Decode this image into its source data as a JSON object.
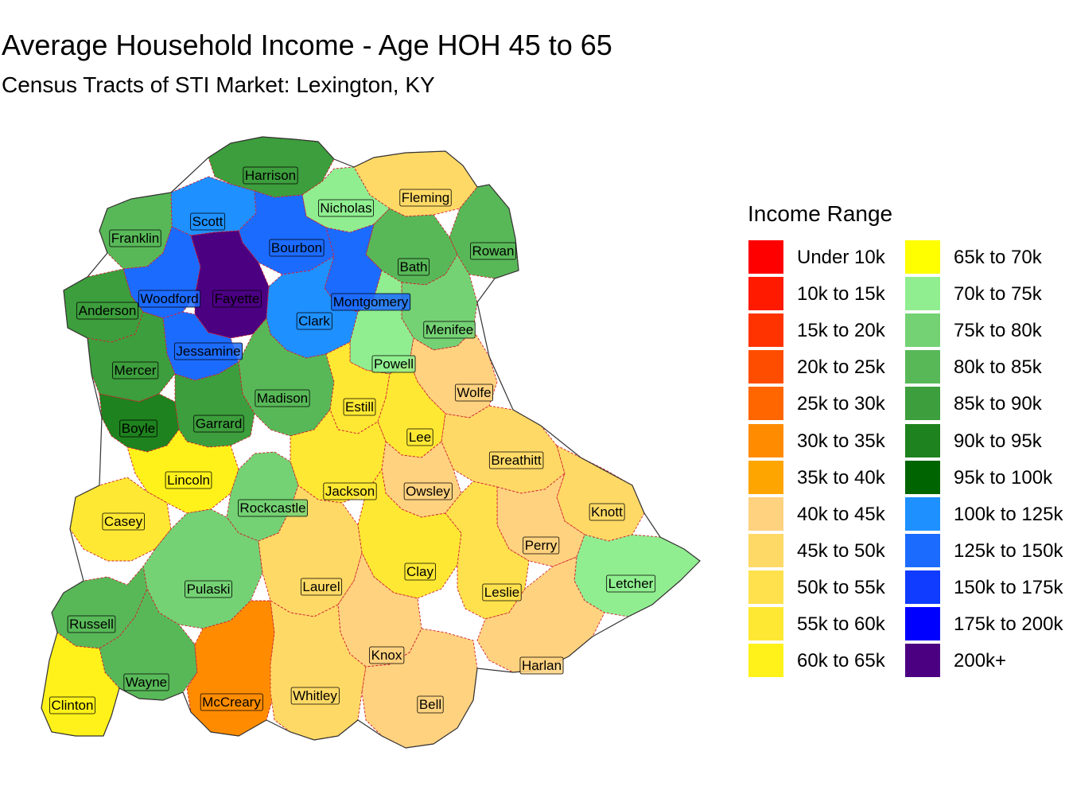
{
  "title": "Average Household Income - Age HOH 45 to 65",
  "subtitle": "Census Tracts of STI Market: Lexington, KY",
  "legend": {
    "title": "Income Range",
    "items": [
      {
        "label": "Under 10k",
        "color": "#FF0000"
      },
      {
        "label": "10k to 15k",
        "color": "#FF1A00"
      },
      {
        "label": "15k to 20k",
        "color": "#FF3300"
      },
      {
        "label": "20k to 25k",
        "color": "#FF4D00"
      },
      {
        "label": "25k to 30k",
        "color": "#FF6600"
      },
      {
        "label": "30k to 35k",
        "color": "#FF8C00"
      },
      {
        "label": "35k to 40k",
        "color": "#FFA500"
      },
      {
        "label": "40k to 45k",
        "color": "#FFD27F"
      },
      {
        "label": "45k to 50k",
        "color": "#FFD966"
      },
      {
        "label": "50k to 55k",
        "color": "#FFE14D"
      },
      {
        "label": "55k to 60k",
        "color": "#FFE833"
      },
      {
        "label": "60k to 65k",
        "color": "#FFF21A"
      },
      {
        "label": "65k to 70k",
        "color": "#FFFF00"
      },
      {
        "label": "70k to 75k",
        "color": "#90EE90"
      },
      {
        "label": "75k to 80k",
        "color": "#74D274"
      },
      {
        "label": "80k to 85k",
        "color": "#58B858"
      },
      {
        "label": "85k to 90k",
        "color": "#3C9E3C"
      },
      {
        "label": "90k to 95k",
        "color": "#1E821E"
      },
      {
        "label": "95k to 100k",
        "color": "#006400"
      },
      {
        "label": "100k to 125k",
        "color": "#1E90FF"
      },
      {
        "label": "125k to 150k",
        "color": "#1C6BFF"
      },
      {
        "label": "150k to 175k",
        "color": "#0F3CFF"
      },
      {
        "label": "175k to 200k",
        "color": "#0000FF"
      },
      {
        "label": "200k+",
        "color": "#4B0082"
      }
    ]
  },
  "counties": [
    {
      "name": "Harrison",
      "color": "#3C9E3C"
    },
    {
      "name": "Fleming",
      "color": "#FFD966"
    },
    {
      "name": "Nicholas",
      "color": "#90EE90"
    },
    {
      "name": "Scott",
      "color": "#1E90FF"
    },
    {
      "name": "Franklin",
      "color": "#58B858"
    },
    {
      "name": "Bourbon",
      "color": "#1C6BFF"
    },
    {
      "name": "Rowan",
      "color": "#58B858"
    },
    {
      "name": "Bath",
      "color": "#58B858"
    },
    {
      "name": "Woodford",
      "color": "#1C6BFF"
    },
    {
      "name": "Fayette",
      "color": "#4B0082"
    },
    {
      "name": "Montgomery",
      "color": "#1C6BFF"
    },
    {
      "name": "Anderson",
      "color": "#3C9E3C"
    },
    {
      "name": "Clark",
      "color": "#1E90FF"
    },
    {
      "name": "Menifee",
      "color": "#74D274"
    },
    {
      "name": "Jessamine",
      "color": "#1C6BFF"
    },
    {
      "name": "Mercer",
      "color": "#3C9E3C"
    },
    {
      "name": "Powell",
      "color": "#90EE90"
    },
    {
      "name": "Wolfe",
      "color": "#FFD27F"
    },
    {
      "name": "Madison",
      "color": "#58B858"
    },
    {
      "name": "Estill",
      "color": "#FFE833"
    },
    {
      "name": "Boyle",
      "color": "#1E821E"
    },
    {
      "name": "Garrard",
      "color": "#3C9E3C"
    },
    {
      "name": "Lee",
      "color": "#FFE833"
    },
    {
      "name": "Breathitt",
      "color": "#FFD966"
    },
    {
      "name": "Lincoln",
      "color": "#FFF21A"
    },
    {
      "name": "Jackson",
      "color": "#FFE833"
    },
    {
      "name": "Owsley",
      "color": "#FFD27F"
    },
    {
      "name": "Casey",
      "color": "#FFE833"
    },
    {
      "name": "Rockcastle",
      "color": "#74D274"
    },
    {
      "name": "Knott",
      "color": "#FFD966"
    },
    {
      "name": "Perry",
      "color": "#FFD27F"
    },
    {
      "name": "Clay",
      "color": "#FFE833"
    },
    {
      "name": "Pulaski",
      "color": "#74D274"
    },
    {
      "name": "Laurel",
      "color": "#FFD966"
    },
    {
      "name": "Leslie",
      "color": "#FFE14D"
    },
    {
      "name": "Letcher",
      "color": "#90EE90"
    },
    {
      "name": "Russell",
      "color": "#58B858"
    },
    {
      "name": "Knox",
      "color": "#FFD27F"
    },
    {
      "name": "Harlan",
      "color": "#FFD27F"
    },
    {
      "name": "Wayne",
      "color": "#58B858"
    },
    {
      "name": "McCreary",
      "color": "#FF8C00"
    },
    {
      "name": "Whitley",
      "color": "#FFD966"
    },
    {
      "name": "Clinton",
      "color": "#FFF21A"
    },
    {
      "name": "Bell",
      "color": "#FFD27F"
    }
  ]
}
